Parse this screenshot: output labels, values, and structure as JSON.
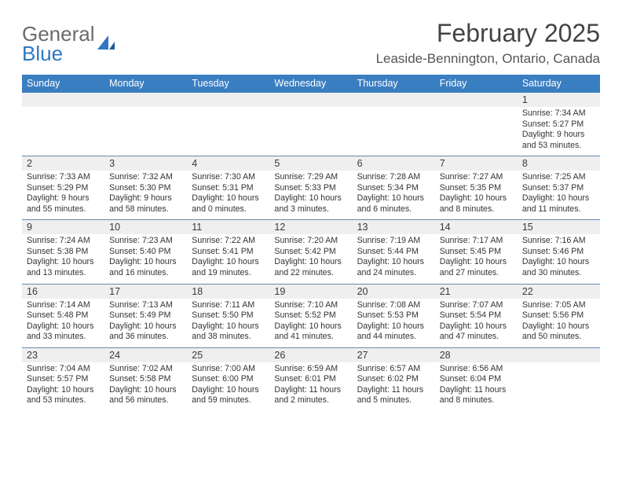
{
  "logo": {
    "general": "General",
    "blue": "Blue"
  },
  "header": {
    "month_title": "February 2025",
    "location": "Leaside-Bennington, Ontario, Canada"
  },
  "colors": {
    "header_bar": "#3a7ec2",
    "header_text": "#ffffff",
    "daynum_bg": "#efefef",
    "divider": "#6a89a8",
    "logo_blue": "#2f78c2",
    "logo_gray": "#6b6b6b"
  },
  "weekdays": [
    "Sunday",
    "Monday",
    "Tuesday",
    "Wednesday",
    "Thursday",
    "Friday",
    "Saturday"
  ],
  "weeks": [
    [
      null,
      null,
      null,
      null,
      null,
      null,
      {
        "n": "1",
        "sr": "7:34 AM",
        "ss": "5:27 PM",
        "dl": "9 hours and 53 minutes."
      }
    ],
    [
      {
        "n": "2",
        "sr": "7:33 AM",
        "ss": "5:29 PM",
        "dl": "9 hours and 55 minutes."
      },
      {
        "n": "3",
        "sr": "7:32 AM",
        "ss": "5:30 PM",
        "dl": "9 hours and 58 minutes."
      },
      {
        "n": "4",
        "sr": "7:30 AM",
        "ss": "5:31 PM",
        "dl": "10 hours and 0 minutes."
      },
      {
        "n": "5",
        "sr": "7:29 AM",
        "ss": "5:33 PM",
        "dl": "10 hours and 3 minutes."
      },
      {
        "n": "6",
        "sr": "7:28 AM",
        "ss": "5:34 PM",
        "dl": "10 hours and 6 minutes."
      },
      {
        "n": "7",
        "sr": "7:27 AM",
        "ss": "5:35 PM",
        "dl": "10 hours and 8 minutes."
      },
      {
        "n": "8",
        "sr": "7:25 AM",
        "ss": "5:37 PM",
        "dl": "10 hours and 11 minutes."
      }
    ],
    [
      {
        "n": "9",
        "sr": "7:24 AM",
        "ss": "5:38 PM",
        "dl": "10 hours and 13 minutes."
      },
      {
        "n": "10",
        "sr": "7:23 AM",
        "ss": "5:40 PM",
        "dl": "10 hours and 16 minutes."
      },
      {
        "n": "11",
        "sr": "7:22 AM",
        "ss": "5:41 PM",
        "dl": "10 hours and 19 minutes."
      },
      {
        "n": "12",
        "sr": "7:20 AM",
        "ss": "5:42 PM",
        "dl": "10 hours and 22 minutes."
      },
      {
        "n": "13",
        "sr": "7:19 AM",
        "ss": "5:44 PM",
        "dl": "10 hours and 24 minutes."
      },
      {
        "n": "14",
        "sr": "7:17 AM",
        "ss": "5:45 PM",
        "dl": "10 hours and 27 minutes."
      },
      {
        "n": "15",
        "sr": "7:16 AM",
        "ss": "5:46 PM",
        "dl": "10 hours and 30 minutes."
      }
    ],
    [
      {
        "n": "16",
        "sr": "7:14 AM",
        "ss": "5:48 PM",
        "dl": "10 hours and 33 minutes."
      },
      {
        "n": "17",
        "sr": "7:13 AM",
        "ss": "5:49 PM",
        "dl": "10 hours and 36 minutes."
      },
      {
        "n": "18",
        "sr": "7:11 AM",
        "ss": "5:50 PM",
        "dl": "10 hours and 38 minutes."
      },
      {
        "n": "19",
        "sr": "7:10 AM",
        "ss": "5:52 PM",
        "dl": "10 hours and 41 minutes."
      },
      {
        "n": "20",
        "sr": "7:08 AM",
        "ss": "5:53 PM",
        "dl": "10 hours and 44 minutes."
      },
      {
        "n": "21",
        "sr": "7:07 AM",
        "ss": "5:54 PM",
        "dl": "10 hours and 47 minutes."
      },
      {
        "n": "22",
        "sr": "7:05 AM",
        "ss": "5:56 PM",
        "dl": "10 hours and 50 minutes."
      }
    ],
    [
      {
        "n": "23",
        "sr": "7:04 AM",
        "ss": "5:57 PM",
        "dl": "10 hours and 53 minutes."
      },
      {
        "n": "24",
        "sr": "7:02 AM",
        "ss": "5:58 PM",
        "dl": "10 hours and 56 minutes."
      },
      {
        "n": "25",
        "sr": "7:00 AM",
        "ss": "6:00 PM",
        "dl": "10 hours and 59 minutes."
      },
      {
        "n": "26",
        "sr": "6:59 AM",
        "ss": "6:01 PM",
        "dl": "11 hours and 2 minutes."
      },
      {
        "n": "27",
        "sr": "6:57 AM",
        "ss": "6:02 PM",
        "dl": "11 hours and 5 minutes."
      },
      {
        "n": "28",
        "sr": "6:56 AM",
        "ss": "6:04 PM",
        "dl": "11 hours and 8 minutes."
      },
      null
    ]
  ],
  "labels": {
    "sunrise": "Sunrise:",
    "sunset": "Sunset:",
    "daylight": "Daylight:"
  }
}
